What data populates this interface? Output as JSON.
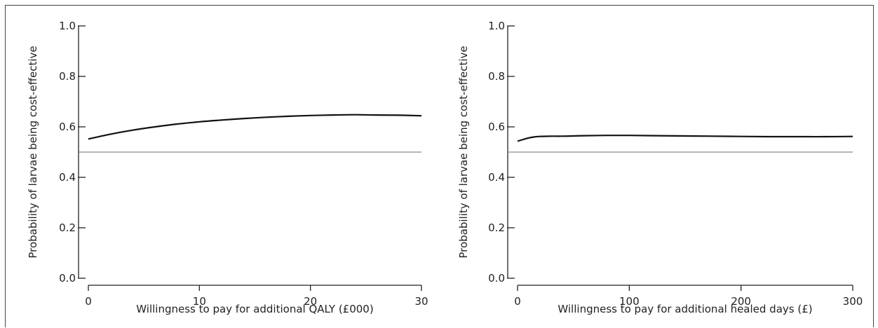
{
  "chart_data": [
    {
      "type": "line",
      "xlabel": "Willingness to pay for additional QALY (£000)",
      "ylabel": "Probability of larvae being cost-effective",
      "xlim": [
        0,
        30
      ],
      "ylim": [
        0,
        1.0
      ],
      "x_ticks": [
        0,
        10,
        20,
        30
      ],
      "x_tick_labels": [
        "0",
        "10",
        "20",
        "30"
      ],
      "y_ticks": [
        0,
        0.2,
        0.4,
        0.6,
        0.8,
        1.0
      ],
      "y_tick_labels": [
        "0.0",
        "0.2",
        "0.4",
        "0.6",
        "0.8",
        "1.0"
      ],
      "reference_line": 0.5,
      "series": [
        {
          "x": [
            0,
            2,
            4,
            6,
            8,
            10,
            12,
            14,
            16,
            18,
            20,
            22,
            24,
            26,
            28,
            30
          ],
          "values": [
            0.552,
            0.571,
            0.587,
            0.6,
            0.611,
            0.62,
            0.627,
            0.633,
            0.638,
            0.642,
            0.645,
            0.647,
            0.648,
            0.647,
            0.646,
            0.644
          ]
        }
      ]
    },
    {
      "type": "line",
      "xlabel": "Willingness to pay for additional healed days (£)",
      "ylabel": "Probability of larvae being cost-effective",
      "xlim": [
        0,
        300
      ],
      "ylim": [
        0,
        1.0
      ],
      "x_ticks": [
        0,
        100,
        200,
        300
      ],
      "x_tick_labels": [
        "0",
        "100",
        "200",
        "300"
      ],
      "y_ticks": [
        0,
        0.2,
        0.4,
        0.6,
        0.8,
        1.0
      ],
      "y_tick_labels": [
        "0.0",
        "0.2",
        "0.4",
        "0.6",
        "0.8",
        "1.0"
      ],
      "reference_line": 0.5,
      "series": [
        {
          "x": [
            0,
            5,
            10,
            15,
            20,
            30,
            40,
            50,
            60,
            80,
            100,
            125,
            150,
            175,
            200,
            225,
            250,
            275,
            300
          ],
          "values": [
            0.543,
            0.55,
            0.556,
            0.56,
            0.562,
            0.563,
            0.563,
            0.564,
            0.565,
            0.566,
            0.566,
            0.565,
            0.564,
            0.563,
            0.562,
            0.561,
            0.561,
            0.561,
            0.562
          ]
        }
      ]
    }
  ]
}
